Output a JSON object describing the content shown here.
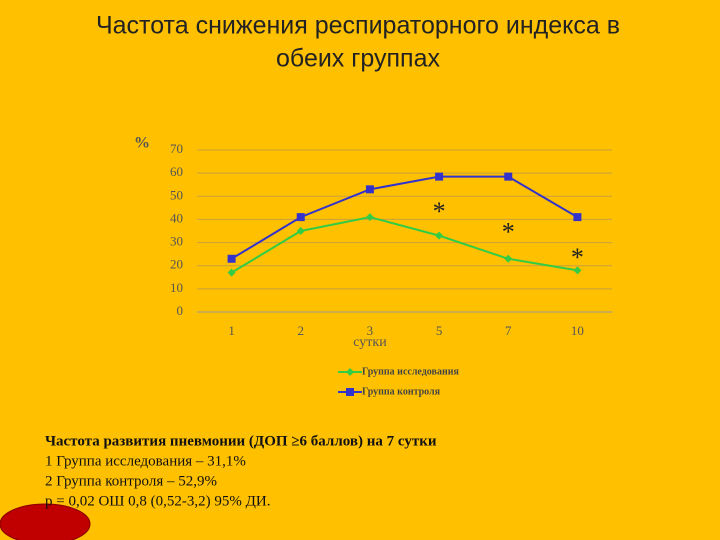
{
  "chart_data": {
    "type": "line",
    "title": [
      "Частота снижения респираторного индекса  в",
      "обеих группах"
    ],
    "y_label": "%",
    "x_label": "сутки",
    "categories": [
      "1",
      "2",
      "3",
      "5",
      "7",
      "10"
    ],
    "series": [
      {
        "name": "Группа исследования",
        "color": "#33cc44",
        "marker": "diamond",
        "values": [
          17,
          35,
          41,
          33,
          23,
          18
        ]
      },
      {
        "name": "Группа контроля",
        "color": "#3333cc",
        "marker": "square",
        "values": [
          23,
          41,
          53,
          58.5,
          58.5,
          41
        ]
      }
    ],
    "ylim": [
      0,
      70
    ],
    "yticks": [
      0,
      10,
      20,
      30,
      40,
      50,
      60,
      70
    ],
    "grid": true,
    "annotations": [
      "*",
      "*",
      "*"
    ],
    "notes": [
      "Частота развития пневмонии (ДОП ≥6 баллов) на 7 сутки",
      "1 Группа исследования  – 31,1%",
      "2 Группа контроля – 52,9%",
      "р = 0,02 ОШ 0,8 (0,52-3,2) 95% ДИ."
    ]
  }
}
